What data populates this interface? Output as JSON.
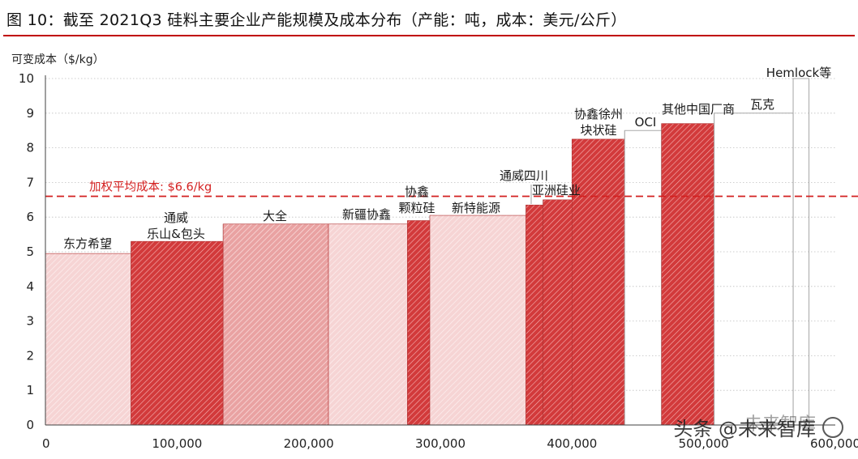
{
  "figure": {
    "title": "图 10：截至 2021Q3 硅料主要企业产能规模及成本分布（产能：吨，成本：美元/公斤）"
  },
  "watermark": {
    "text": "头条 @未来智库",
    "top_text": "未来智库"
  },
  "colors": {
    "rule": "#c00000",
    "bar_dark": "#cf2f30",
    "bar_mid": "#dd5a5a",
    "bar_light": "#e88a8a",
    "bar_pale": "#f4cfcf",
    "avg_line": "#d42020",
    "grid": "#bfbfbf"
  },
  "chart_data": {
    "type": "bar",
    "subtype": "cost-curve (variable-width bars)",
    "ylabel": "可变成本（$/kg）",
    "xlabel": "",
    "xlim": [
      0,
      600000
    ],
    "ylim": [
      0,
      10
    ],
    "x_ticks": [
      "0",
      "100,000",
      "200,000",
      "300,000",
      "400,000",
      "500,000",
      "600,000"
    ],
    "x_tick_values": [
      0,
      100000,
      200000,
      300000,
      400000,
      500000,
      600000
    ],
    "y_ticks": [
      "0",
      "1",
      "2",
      "3",
      "4",
      "5",
      "6",
      "7",
      "8",
      "9",
      "10"
    ],
    "y_tick_values": [
      0,
      1,
      2,
      3,
      4,
      5,
      6,
      7,
      8,
      9,
      10
    ],
    "grid": "horizontal dotted",
    "average": {
      "label": "加权平均成本: $6.6/kg",
      "value": 6.6
    },
    "bars": [
      {
        "label": "东方希望",
        "x0": 0,
        "x1": 65000,
        "cost": 4.95,
        "style": "pale"
      },
      {
        "label": "通威\n乐山&包头",
        "x0": 65000,
        "x1": 135000,
        "cost": 5.3,
        "style": "dark"
      },
      {
        "label": "大全",
        "x0": 135000,
        "x1": 215000,
        "cost": 5.8,
        "style": "light"
      },
      {
        "label": "新疆协鑫",
        "x0": 215000,
        "x1": 275000,
        "cost": 5.8,
        "style": "pale"
      },
      {
        "label": "协鑫\n颗粒硅",
        "x0": 275000,
        "x1": 292000,
        "cost": 5.9,
        "style": "dark"
      },
      {
        "label": "新特能源",
        "x0": 292000,
        "x1": 365000,
        "cost": 6.05,
        "style": "pale"
      },
      {
        "label": "通威四川",
        "x0": 365000,
        "x1": 378000,
        "cost": 6.35,
        "style": "dark"
      },
      {
        "label": "亚洲硅业",
        "x0": 378000,
        "x1": 400000,
        "cost": 6.5,
        "style": "dark"
      },
      {
        "label": "协鑫徐州\n块状硅",
        "x0": 400000,
        "x1": 440000,
        "cost": 8.25,
        "style": "dark"
      },
      {
        "label": "OCI",
        "x0": 440000,
        "x1": 468000,
        "cost": 8.5,
        "style": "none"
      },
      {
        "label": "其他中国厂商",
        "x0": 468000,
        "x1": 508000,
        "cost": 8.7,
        "style": "dark"
      },
      {
        "label": "瓦克",
        "x0": 508000,
        "x1": 568000,
        "cost": 9.0,
        "style": "none"
      },
      {
        "label": "Hemlock等",
        "x0": 568000,
        "x1": 580000,
        "cost": 10.0,
        "style": "none"
      }
    ]
  }
}
